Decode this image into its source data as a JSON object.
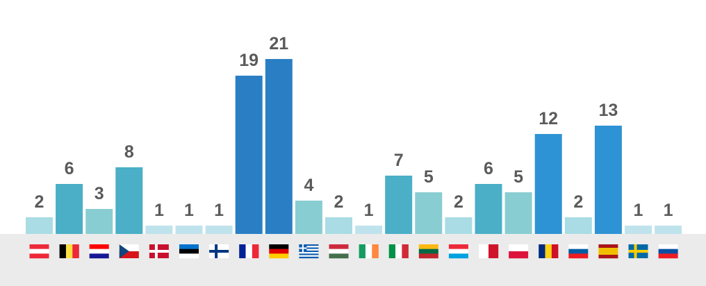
{
  "chart_data": {
    "type": "bar",
    "categories": [
      null,
      null,
      null,
      null,
      null,
      null,
      null,
      null,
      null,
      null,
      null,
      null,
      null,
      null,
      null,
      null,
      null,
      null,
      null,
      null,
      null,
      null
    ],
    "values": [
      2,
      6,
      3,
      8,
      1,
      1,
      1,
      19,
      21,
      4,
      2,
      1,
      7,
      5,
      2,
      6,
      5,
      12,
      2,
      13,
      1,
      1
    ],
    "colors": [
      "#a9dce4",
      "#4aafc7",
      "#88cdd1",
      "#4aafc7",
      "#bfe3ec",
      "#bfe3ec",
      "#bfe3ec",
      "#2a7fc4",
      "#2a7fc4",
      "#88cdd1",
      "#a9dce4",
      "#bfe3ec",
      "#4aafc7",
      "#88cdd1",
      "#a9dce4",
      "#4aafc7",
      "#88cdd1",
      "#2e93d4",
      "#a9dce4",
      "#2e93d4",
      "#bfe3ec",
      "#bfe3ec"
    ]
  }
}
